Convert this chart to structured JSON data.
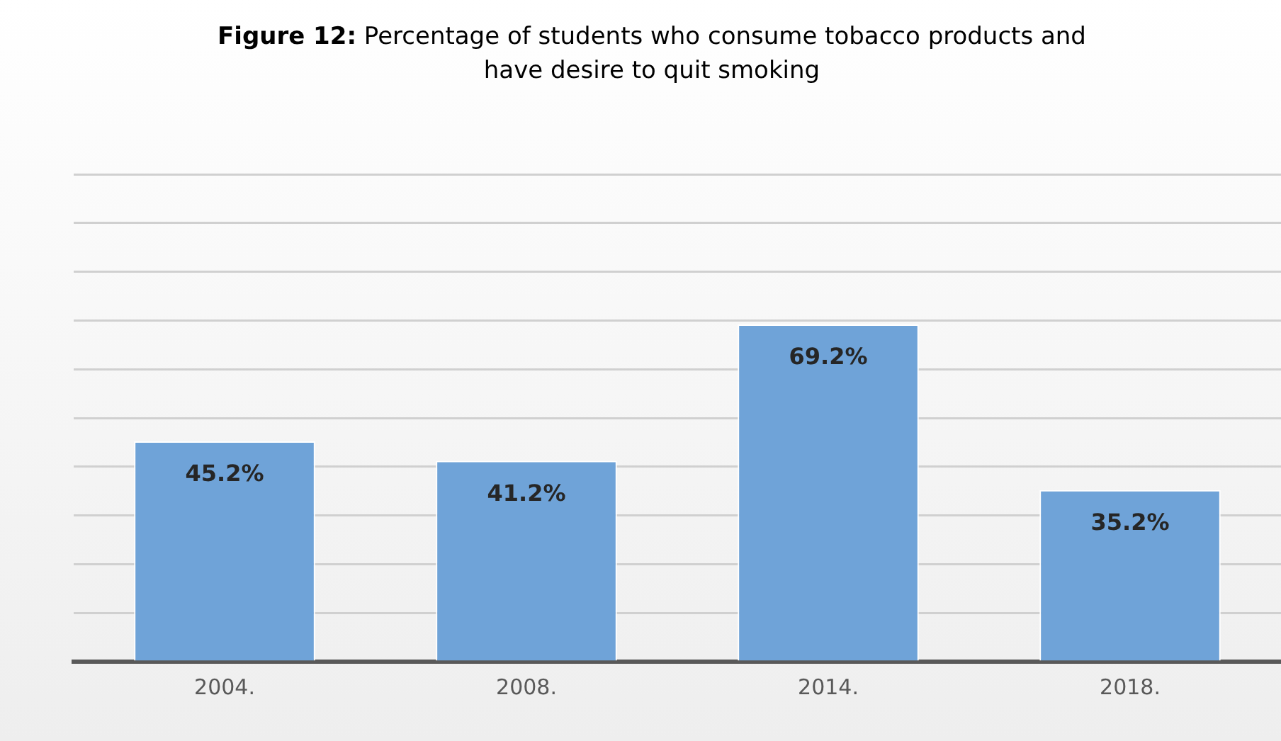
{
  "chart_data": {
    "type": "bar",
    "title": "Figure 12: Percentage of students who consume tobacco products and have desire to quit smoking",
    "categories": [
      "2004.",
      "2008.",
      "2014.",
      "2018."
    ],
    "values": [
      45.2,
      41.2,
      69.2,
      35.2
    ],
    "value_labels": [
      "45.2%",
      "41.2%",
      "69.2%",
      "35.2%"
    ],
    "color": "#6fa3d8",
    "ylim": [
      0,
      100
    ],
    "yticks": [
      {
        "value": 0,
        "label": null
      },
      {
        "value": 10,
        "label": null
      },
      {
        "value": 20,
        "label": null
      },
      {
        "value": 30,
        "label": null
      },
      {
        "value": 40,
        "label": null
      },
      {
        "value": 50,
        "label": null
      },
      {
        "value": 60,
        "label": null
      },
      {
        "value": 70,
        "label": null
      },
      {
        "value": 80,
        "label": null
      },
      {
        "value": 90,
        "label": null
      },
      {
        "value": 100,
        "label": null
      }
    ],
    "grid": "y"
  }
}
